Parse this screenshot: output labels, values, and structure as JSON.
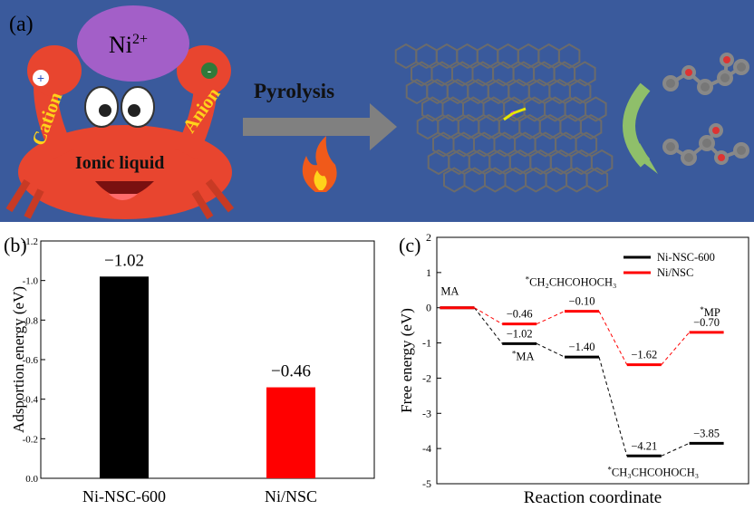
{
  "panel_a": {
    "label": "(a)",
    "ion": "Ni",
    "ion_charge": "2+",
    "cation": "Cation",
    "anion": "Anion",
    "liquid": "Ionic liquid",
    "process": "Pyrolysis",
    "plus": "+",
    "minus": "-"
  },
  "chart_data": [
    {
      "panel": "(b)",
      "type": "bar",
      "categories": [
        "Ni-NSC-600",
        "Ni/NSC"
      ],
      "values": [
        -1.02,
        -0.46
      ],
      "value_labels": [
        "−1.02",
        "−0.46"
      ],
      "colors": [
        "#000000",
        "#ff0000"
      ],
      "ylabel": "Adsportion energy (eV)",
      "ylim": [
        0.0,
        -1.2
      ],
      "ytick_labels": [
        "0.0",
        "-0.2",
        "-0.4",
        "-0.6",
        "-0.8",
        "-1.0",
        "-1.2"
      ],
      "grid": false
    },
    {
      "panel": "(c)",
      "type": "line",
      "xlabel": "Reaction coordinate",
      "ylabel": "Free energy (eV)",
      "ylim": [
        -5,
        2
      ],
      "ytick_labels": [
        "-5",
        "-4",
        "-3",
        "-2",
        "-1",
        "0",
        "1",
        "2"
      ],
      "legend_position": "top-right",
      "grid": false,
      "series": [
        {
          "name": "Ni-NSC-600",
          "color": "#000000",
          "values": [
            0,
            -1.02,
            -1.4,
            -4.21,
            -3.85
          ],
          "labels": [
            "",
            "−1.02",
            "−1.40",
            "−4.21",
            "−3.85"
          ]
        },
        {
          "name": "Ni/NSC",
          "color": "#ff0000",
          "values": [
            0,
            -0.46,
            -0.1,
            -1.62,
            -0.7
          ],
          "labels": [
            "",
            "−0.46",
            "−0.10",
            "−1.62",
            "−0.70"
          ]
        }
      ],
      "state_labels": [
        {
          "sup": "",
          "base": "MA"
        },
        {
          "sup": "*",
          "base": "MA"
        },
        {
          "sup": "*",
          "base": "CH₂CHCOHOCH₃"
        },
        {
          "sup": "*",
          "base": "CH₃CHCOHOCH₃"
        },
        {
          "sup": "*",
          "base": "MP"
        }
      ]
    }
  ]
}
